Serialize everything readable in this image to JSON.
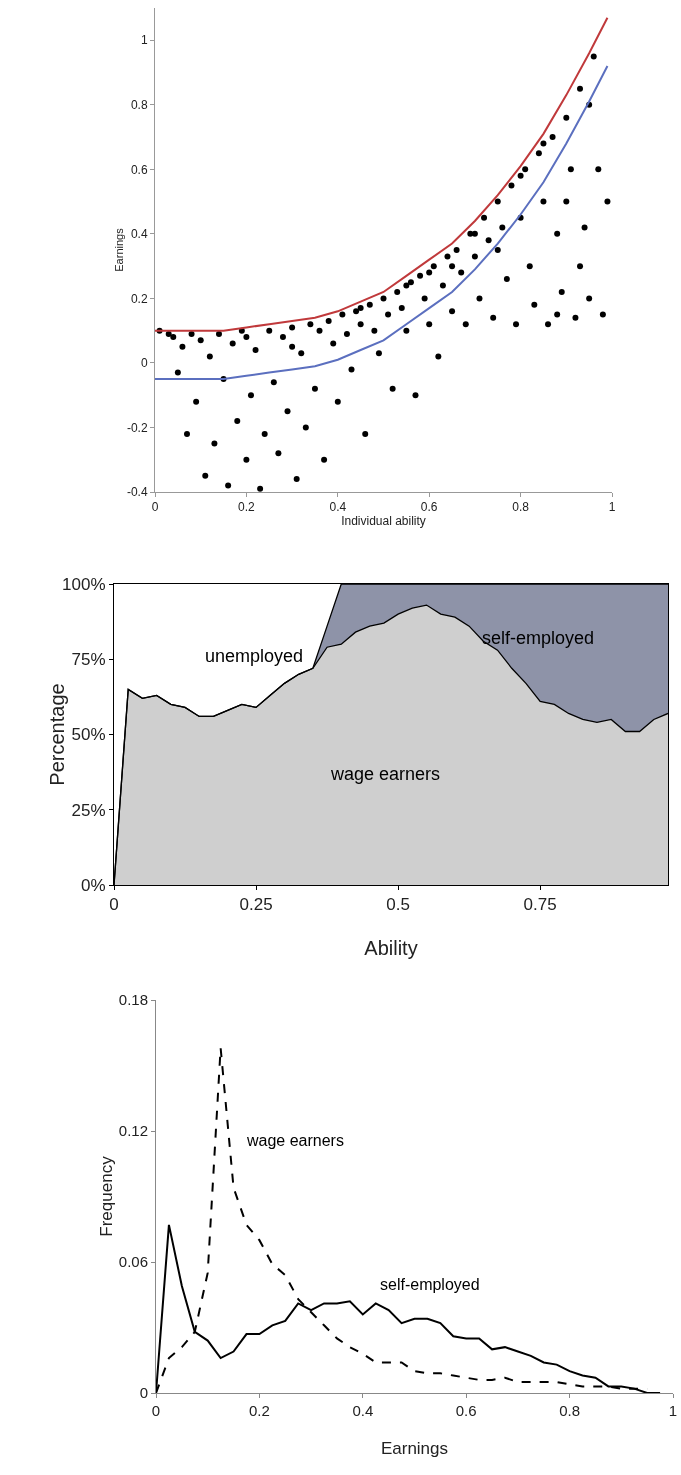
{
  "chart_data": [
    {
      "type": "scatter",
      "xlabel": "Individual ability",
      "ylabel": "Earnings",
      "xlim": [
        0,
        1
      ],
      "ylim": [
        -0.4,
        1.1
      ],
      "xticks": [
        0,
        0.2,
        0.4,
        0.6,
        0.8,
        1
      ],
      "yticks": [
        -0.4,
        -0.2,
        0,
        0.2,
        0.4,
        0.6,
        0.8,
        1
      ],
      "grid": false,
      "series": [
        {
          "type": "scatter",
          "color": "#000000",
          "marker": "circle",
          "x": [
            0.01,
            0.04,
            0.05,
            0.06,
            0.07,
            0.08,
            0.09,
            0.1,
            0.11,
            0.12,
            0.13,
            0.14,
            0.15,
            0.16,
            0.17,
            0.18,
            0.19,
            0.2,
            0.21,
            0.22,
            0.23,
            0.24,
            0.25,
            0.26,
            0.27,
            0.28,
            0.29,
            0.3,
            0.31,
            0.32,
            0.33,
            0.34,
            0.35,
            0.36,
            0.37,
            0.38,
            0.39,
            0.4,
            0.41,
            0.42,
            0.43,
            0.44,
            0.45,
            0.46,
            0.47,
            0.48,
            0.49,
            0.5,
            0.51,
            0.52,
            0.53,
            0.54,
            0.55,
            0.56,
            0.57,
            0.58,
            0.59,
            0.6,
            0.61,
            0.62,
            0.63,
            0.64,
            0.65,
            0.66,
            0.67,
            0.68,
            0.69,
            0.7,
            0.71,
            0.72,
            0.73,
            0.74,
            0.75,
            0.76,
            0.77,
            0.78,
            0.79,
            0.8,
            0.81,
            0.82,
            0.83,
            0.84,
            0.85,
            0.86,
            0.87,
            0.88,
            0.89,
            0.9,
            0.91,
            0.92,
            0.93,
            0.94,
            0.95,
            0.96,
            0.97,
            0.98,
            0.99,
            0.03,
            0.2,
            0.3,
            0.45,
            0.55,
            0.6,
            0.65,
            0.7,
            0.75,
            0.8,
            0.85,
            0.9,
            0.95,
            0.88,
            0.93
          ],
          "values": [
            0.1,
            0.08,
            -0.03,
            0.05,
            -0.22,
            0.09,
            -0.12,
            0.07,
            -0.35,
            0.02,
            -0.25,
            0.09,
            -0.05,
            -0.38,
            0.06,
            -0.18,
            0.1,
            -0.3,
            -0.1,
            0.04,
            -0.39,
            -0.22,
            0.1,
            -0.06,
            -0.28,
            0.08,
            -0.15,
            0.11,
            -0.36,
            0.03,
            -0.2,
            0.12,
            -0.08,
            0.1,
            -0.3,
            0.13,
            0.06,
            -0.12,
            0.15,
            0.09,
            -0.02,
            0.16,
            0.12,
            -0.22,
            0.18,
            0.1,
            0.03,
            0.2,
            0.15,
            -0.08,
            0.22,
            0.17,
            0.1,
            0.25,
            -0.1,
            0.27,
            0.2,
            0.12,
            0.3,
            0.02,
            0.24,
            0.33,
            0.16,
            0.35,
            0.28,
            0.12,
            0.4,
            0.33,
            0.2,
            0.45,
            0.38,
            0.14,
            0.5,
            0.42,
            0.26,
            0.55,
            0.12,
            0.45,
            0.6,
            0.3,
            0.18,
            0.65,
            0.5,
            0.12,
            0.7,
            0.4,
            0.22,
            0.76,
            0.6,
            0.14,
            0.85,
            0.42,
            0.2,
            0.95,
            0.6,
            0.15,
            0.5,
            0.09,
            0.08,
            0.05,
            0.17,
            0.24,
            0.28,
            0.3,
            0.4,
            0.35,
            0.58,
            0.68,
            0.5,
            0.8,
            0.15,
            0.3
          ]
        },
        {
          "type": "line",
          "marker": "none",
          "color": "#c0393b",
          "x": [
            0,
            0.05,
            0.1,
            0.15,
            0.2,
            0.25,
            0.3,
            0.35,
            0.4,
            0.45,
            0.5,
            0.55,
            0.6,
            0.65,
            0.7,
            0.75,
            0.8,
            0.85,
            0.9,
            0.95,
            0.99
          ],
          "values": [
            0.1,
            0.1,
            0.1,
            0.1,
            0.11,
            0.12,
            0.13,
            0.14,
            0.16,
            0.19,
            0.22,
            0.27,
            0.32,
            0.37,
            0.44,
            0.52,
            0.61,
            0.71,
            0.83,
            0.96,
            1.07
          ]
        },
        {
          "type": "line",
          "marker": "none",
          "color": "#5b6fbf",
          "x": [
            0,
            0.05,
            0.1,
            0.15,
            0.2,
            0.25,
            0.3,
            0.35,
            0.4,
            0.45,
            0.5,
            0.55,
            0.6,
            0.65,
            0.7,
            0.75,
            0.8,
            0.85,
            0.9,
            0.95,
            0.99
          ],
          "values": [
            -0.05,
            -0.05,
            -0.05,
            -0.05,
            -0.04,
            -0.03,
            -0.02,
            -0.01,
            0.01,
            0.04,
            0.07,
            0.12,
            0.17,
            0.22,
            0.29,
            0.37,
            0.46,
            0.56,
            0.68,
            0.81,
            0.92
          ]
        }
      ]
    },
    {
      "type": "area",
      "stacked": true,
      "annotations": [
        "unemployed"
      ],
      "xlabel": "Ability",
      "ylabel": "Percentage",
      "xlim": [
        0,
        0.975
      ],
      "ylim": [
        0,
        100
      ],
      "xticks": [
        0,
        0.25,
        0.5,
        0.75
      ],
      "yticks": [
        {
          "value": 0,
          "label": "0%"
        },
        {
          "value": 25,
          "label": "25%"
        },
        {
          "value": 50,
          "label": "50%"
        },
        {
          "value": 75,
          "label": "75%"
        },
        {
          "value": 100,
          "label": "100%"
        }
      ],
      "grid": false,
      "x": [
        0,
        0.025,
        0.05,
        0.075,
        0.1,
        0.125,
        0.15,
        0.175,
        0.2,
        0.225,
        0.25,
        0.275,
        0.3,
        0.325,
        0.35,
        0.375,
        0.4,
        0.425,
        0.45,
        0.475,
        0.5,
        0.525,
        0.55,
        0.575,
        0.6,
        0.625,
        0.65,
        0.675,
        0.7,
        0.725,
        0.75,
        0.775,
        0.8,
        0.825,
        0.85,
        0.875,
        0.9,
        0.925,
        0.95,
        0.975
      ],
      "series": [
        {
          "name": "wage earners",
          "color": "#cfcfcf",
          "values": [
            0,
            65,
            62,
            63,
            60,
            59,
            56,
            56,
            58,
            60,
            59,
            63,
            67,
            70,
            72,
            79,
            80,
            84,
            86,
            87,
            90,
            92,
            93,
            90,
            89,
            86,
            81,
            78,
            72,
            67,
            61,
            60,
            57,
            55,
            54,
            55,
            51,
            51,
            55,
            57
          ]
        },
        {
          "name": "self-employed",
          "color": "#8e93a8",
          "values": [
            0,
            0,
            0,
            0,
            0,
            0,
            0,
            0,
            0,
            0,
            0,
            0,
            0,
            0,
            0,
            7,
            20,
            16,
            14,
            13,
            10,
            8,
            7,
            10,
            11,
            14,
            19,
            22,
            28,
            33,
            39,
            40,
            43,
            45,
            46,
            45,
            49,
            49,
            45,
            43
          ]
        }
      ]
    },
    {
      "type": "line",
      "xlabel": "Earnings",
      "ylabel": "Frequency",
      "xlim": [
        0,
        1
      ],
      "ylim": [
        0,
        0.18
      ],
      "xticks": [
        0,
        0.2,
        0.4,
        0.6,
        0.8,
        1
      ],
      "yticks": [
        0,
        0.06,
        0.12,
        0.18
      ],
      "grid": false,
      "series": [
        {
          "name": "wage earners",
          "color": "#000000",
          "line_style": "dashed",
          "x": [
            0,
            0.025,
            0.05,
            0.075,
            0.1,
            0.125,
            0.15,
            0.175,
            0.2,
            0.225,
            0.25,
            0.275,
            0.3,
            0.325,
            0.35,
            0.375,
            0.4,
            0.425,
            0.45,
            0.475,
            0.5,
            0.525,
            0.55,
            0.575,
            0.6,
            0.625,
            0.65,
            0.675,
            0.7,
            0.725,
            0.75,
            0.775,
            0.8,
            0.825,
            0.85,
            0.875,
            0.9,
            0.925,
            0.95
          ],
          "values": [
            0,
            0.016,
            0.021,
            0.028,
            0.055,
            0.158,
            0.094,
            0.077,
            0.07,
            0.059,
            0.054,
            0.043,
            0.037,
            0.031,
            0.025,
            0.021,
            0.018,
            0.014,
            0.014,
            0.014,
            0.01,
            0.009,
            0.009,
            0.008,
            0.007,
            0.006,
            0.006,
            0.007,
            0.005,
            0.005,
            0.005,
            0.005,
            0.004,
            0.003,
            0.003,
            0.003,
            0.002,
            0.002,
            0.002
          ]
        },
        {
          "name": "self-employed",
          "color": "#000000",
          "line_style": "solid",
          "x": [
            0,
            0.025,
            0.05,
            0.075,
            0.1,
            0.125,
            0.15,
            0.175,
            0.2,
            0.225,
            0.25,
            0.275,
            0.3,
            0.325,
            0.35,
            0.375,
            0.4,
            0.425,
            0.45,
            0.475,
            0.5,
            0.525,
            0.55,
            0.575,
            0.6,
            0.625,
            0.65,
            0.675,
            0.7,
            0.725,
            0.75,
            0.775,
            0.8,
            0.825,
            0.85,
            0.875,
            0.9,
            0.925,
            0.95,
            0.975
          ],
          "values": [
            0,
            0.077,
            0.049,
            0.028,
            0.024,
            0.016,
            0.019,
            0.027,
            0.027,
            0.031,
            0.033,
            0.041,
            0.038,
            0.041,
            0.041,
            0.042,
            0.036,
            0.041,
            0.038,
            0.032,
            0.034,
            0.034,
            0.032,
            0.026,
            0.025,
            0.025,
            0.02,
            0.021,
            0.019,
            0.017,
            0.014,
            0.013,
            0.01,
            0.008,
            0.007,
            0.003,
            0.003,
            0.002,
            0,
            0
          ]
        }
      ]
    }
  ]
}
